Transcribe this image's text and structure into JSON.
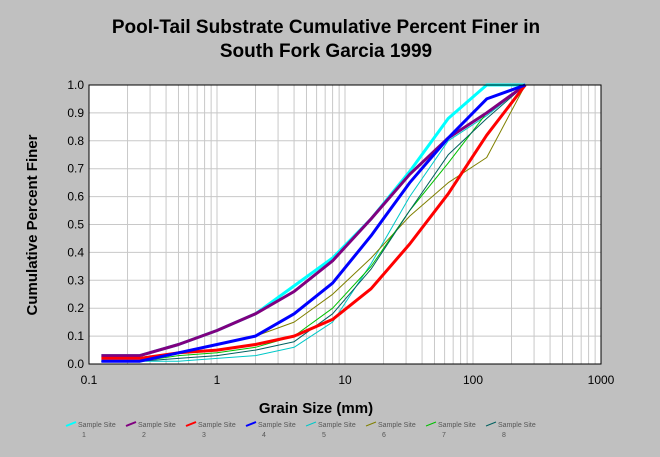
{
  "chart_data": {
    "type": "line",
    "title_lines": [
      "Pool-Tail Substrate Cumulative Percent Finer in",
      "South Fork Garcia 1999"
    ],
    "xlabel": "Grain Size (mm)",
    "ylabel": "Cumulative Percent Finer",
    "x_scale": "log",
    "xlim": [
      0.1,
      1000
    ],
    "ylim": [
      0,
      1.0
    ],
    "x_ticks": [
      0.1,
      1,
      10,
      100,
      1000
    ],
    "x_tick_labels": [
      "0.1",
      "1",
      "10",
      "100",
      "1000"
    ],
    "y_ticks": [
      0,
      0.1,
      0.2,
      0.3,
      0.4,
      0.5,
      0.6,
      0.7,
      0.8,
      0.9,
      1.0
    ],
    "y_tick_labels": [
      "0.0",
      "0.1",
      "0.2",
      "0.3",
      "0.4",
      "0.5",
      "0.6",
      "0.7",
      "0.8",
      "0.9",
      "1.0"
    ],
    "grid": true,
    "legend_position": "bottom",
    "series": [
      {
        "name": "Sample Site",
        "number": "1",
        "color": "#00ffff",
        "width": 3,
        "points": [
          [
            0.125,
            0.03
          ],
          [
            0.25,
            0.03
          ],
          [
            0.5,
            0.07
          ],
          [
            1,
            0.12
          ],
          [
            2,
            0.18
          ],
          [
            4,
            0.28
          ],
          [
            8,
            0.38
          ],
          [
            16,
            0.52
          ],
          [
            32,
            0.69
          ],
          [
            64,
            0.88
          ],
          [
            128,
            1.0
          ],
          [
            256,
            1.0
          ]
        ]
      },
      {
        "name": "Sample Site",
        "number": "2",
        "color": "#800080",
        "width": 3,
        "points": [
          [
            0.125,
            0.03
          ],
          [
            0.25,
            0.03
          ],
          [
            0.5,
            0.07
          ],
          [
            1,
            0.12
          ],
          [
            2,
            0.18
          ],
          [
            4,
            0.26
          ],
          [
            8,
            0.37
          ],
          [
            16,
            0.52
          ],
          [
            32,
            0.68
          ],
          [
            64,
            0.81
          ],
          [
            128,
            0.9
          ],
          [
            256,
            1.0
          ]
        ]
      },
      {
        "name": "Sample Site",
        "number": "3",
        "color": "#ff0000",
        "width": 3,
        "points": [
          [
            0.125,
            0.02
          ],
          [
            0.25,
            0.02
          ],
          [
            0.5,
            0.04
          ],
          [
            1,
            0.05
          ],
          [
            2,
            0.07
          ],
          [
            4,
            0.1
          ],
          [
            8,
            0.16
          ],
          [
            16,
            0.27
          ],
          [
            32,
            0.43
          ],
          [
            64,
            0.61
          ],
          [
            128,
            0.82
          ],
          [
            256,
            1.0
          ]
        ]
      },
      {
        "name": "Sample Site",
        "number": "4",
        "color": "#0000ff",
        "width": 3,
        "points": [
          [
            0.125,
            0.01
          ],
          [
            0.25,
            0.01
          ],
          [
            0.5,
            0.04
          ],
          [
            1,
            0.07
          ],
          [
            2,
            0.1
          ],
          [
            4,
            0.18
          ],
          [
            8,
            0.29
          ],
          [
            16,
            0.46
          ],
          [
            32,
            0.65
          ],
          [
            64,
            0.81
          ],
          [
            128,
            0.95
          ],
          [
            256,
            1.0
          ]
        ]
      },
      {
        "name": "Sample Site",
        "number": "5",
        "color": "#00c8c8",
        "width": 1,
        "points": [
          [
            0.125,
            0.01
          ],
          [
            0.25,
            0.01
          ],
          [
            0.5,
            0.01
          ],
          [
            1,
            0.02
          ],
          [
            2,
            0.03
          ],
          [
            4,
            0.06
          ],
          [
            8,
            0.15
          ],
          [
            16,
            0.36
          ],
          [
            32,
            0.6
          ],
          [
            64,
            0.8
          ],
          [
            128,
            0.89
          ],
          [
            256,
            1.0
          ]
        ]
      },
      {
        "name": "Sample Site",
        "number": "6",
        "color": "#808000",
        "width": 1,
        "points": [
          [
            0.125,
            0.01
          ],
          [
            0.25,
            0.01
          ],
          [
            0.5,
            0.04
          ],
          [
            1,
            0.07
          ],
          [
            2,
            0.1
          ],
          [
            4,
            0.15
          ],
          [
            8,
            0.25
          ],
          [
            16,
            0.38
          ],
          [
            32,
            0.53
          ],
          [
            64,
            0.65
          ],
          [
            128,
            0.74
          ],
          [
            256,
            1.0
          ]
        ]
      },
      {
        "name": "Sample Site",
        "number": "7",
        "color": "#00c000",
        "width": 1,
        "points": [
          [
            0.125,
            0.01
          ],
          [
            0.25,
            0.01
          ],
          [
            0.5,
            0.03
          ],
          [
            1,
            0.04
          ],
          [
            2,
            0.06
          ],
          [
            4,
            0.1
          ],
          [
            8,
            0.2
          ],
          [
            16,
            0.35
          ],
          [
            32,
            0.55
          ],
          [
            64,
            0.72
          ],
          [
            128,
            0.9
          ],
          [
            256,
            1.0
          ]
        ]
      },
      {
        "name": "Sample Site",
        "number": "8",
        "color": "#006060",
        "width": 1,
        "points": [
          [
            0.125,
            0.01
          ],
          [
            0.25,
            0.01
          ],
          [
            0.5,
            0.02
          ],
          [
            1,
            0.03
          ],
          [
            2,
            0.05
          ],
          [
            4,
            0.08
          ],
          [
            8,
            0.18
          ],
          [
            16,
            0.34
          ],
          [
            32,
            0.55
          ],
          [
            64,
            0.75
          ],
          [
            128,
            0.88
          ],
          [
            256,
            1.0
          ]
        ]
      }
    ]
  }
}
